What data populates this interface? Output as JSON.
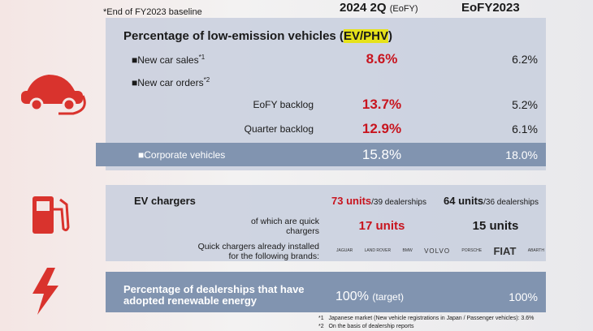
{
  "header": {
    "baseline_note": "*End of FY2023 baseline",
    "col_current": "2024 2Q",
    "col_current_note": "(EoFY)",
    "col_previous": "EoFY2023"
  },
  "low_emission": {
    "title_prefix": "Percentage of low-emission vehicles (",
    "title_highlight": "EV/PHV",
    "title_suffix": ")",
    "rows": [
      {
        "label": "■New car sales",
        "note": "*1",
        "current": "8.6%",
        "previous": "6.2%"
      },
      {
        "label": "■New car orders",
        "note": "*2"
      },
      {
        "label": "EoFY backlog",
        "current": "13.7%",
        "previous": "5.2%"
      },
      {
        "label": "Quarter backlog",
        "current": "12.9%",
        "previous": "6.1%"
      }
    ],
    "corporate": {
      "label": "■Corporate vehicles",
      "current": "15.8%",
      "previous": "18.0%"
    }
  },
  "chargers": {
    "label": "EV chargers",
    "current_units": "73 units",
    "current_dealers": "/39 dealerships",
    "previous_units": "64 units",
    "previous_dealers": "/36 dealerships",
    "quick_label": [
      "of which are quick",
      "chargers"
    ],
    "quick_current": "17 units",
    "quick_previous": "15 units",
    "brands_label": [
      "Quick chargers already installed",
      "for the following brands:"
    ],
    "brands": [
      "JAGUAR",
      "LAND ROVER",
      "BMW",
      "VOLVO",
      "PORSCHE",
      "FIAT",
      "ABARTH"
    ]
  },
  "renewable": {
    "label": [
      "Percentage of dealerships that have",
      "adopted renewable energy"
    ],
    "current": "100%",
    "current_note": "(target)",
    "previous": "100%"
  },
  "footnotes": [
    {
      "mark": "*1",
      "text": "Japanese market (New vehicle registrations in Japan / Passenger vehicles): 3.6%"
    },
    {
      "mark": "*2",
      "text": "On the basis of dealership reports"
    }
  ]
}
